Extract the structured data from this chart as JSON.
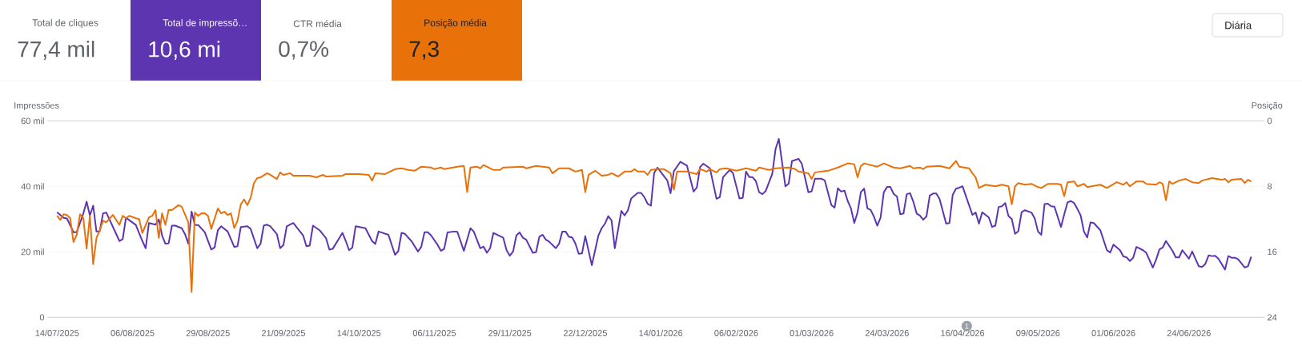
{
  "chart_data": [
    {
      "type": "other",
      "categories": [
        "Total de cliques",
        "Total de impressõ…",
        "CTR média",
        "Posição média"
      ],
      "value_labels": [
        "77,4 mil",
        "10,6 mi",
        "0,7%",
        "7,3"
      ],
      "colors": [
        null,
        "#5e35b1",
        null,
        "#e8710a"
      ],
      "annotations": [
        "Diária"
      ]
    },
    {
      "type": "line",
      "ylabel": "Impressões",
      "y2label": "Posição",
      "grid": "y",
      "xlim": [
        "2025-07-11",
        "2026-07-17"
      ],
      "xticks": [
        {
          "value": "2025-07-14",
          "label": "14/07/2025"
        },
        {
          "value": "2025-08-06",
          "label": "06/08/2025"
        },
        {
          "value": "2025-08-29",
          "label": "29/08/2025"
        },
        {
          "value": "2025-09-21",
          "label": "21/09/2025"
        },
        {
          "value": "2025-10-14",
          "label": "14/10/2025"
        },
        {
          "value": "2025-11-06",
          "label": "06/11/2025"
        },
        {
          "value": "2025-11-29",
          "label": "29/11/2025"
        },
        {
          "value": "2025-12-22",
          "label": "22/12/2025"
        },
        {
          "value": "2026-01-14",
          "label": "14/01/2026"
        },
        {
          "value": "2026-02-06",
          "label": "06/02/2026"
        },
        {
          "value": "2026-03-01",
          "label": "01/03/2026"
        },
        {
          "value": "2026-03-24",
          "label": "24/03/2026"
        },
        {
          "value": "2026-04-16",
          "label": "16/04/2026"
        },
        {
          "value": "2026-05-09",
          "label": "09/05/2026"
        },
        {
          "value": "2026-06-01",
          "label": "01/06/2026"
        },
        {
          "value": "2026-06-24",
          "label": "24/06/2026"
        }
      ],
      "ylim": [
        0,
        60
      ],
      "yticks": [
        0,
        {
          "value": 20,
          "label": "20 mil"
        },
        {
          "value": 40,
          "label": "40 mil"
        },
        {
          "value": 60,
          "label": "60 mil"
        }
      ],
      "y2lim": [
        24,
        0
      ],
      "y2ticks": [
        0,
        8,
        16,
        24
      ],
      "annotations": [
        "1"
      ],
      "series": [
        {
          "color": "#5e35b1",
          "x": [
            "2025-07-14",
            "2025-07-16",
            "2025-07-17",
            "2025-07-19",
            "2025-07-20",
            "2025-07-22",
            "2025-07-23",
            "2025-07-24",
            "2025-07-25",
            "2025-07-26",
            "2025-07-27",
            "2025-07-28",
            "2025-07-29",
            "2025-08-02",
            "2025-08-03",
            "2025-08-04",
            "2025-08-07",
            "2025-08-09",
            "2025-08-10",
            "2025-08-11",
            "2025-08-13",
            "2025-08-14",
            "2025-08-15",
            "2025-08-16",
            "2025-08-17",
            "2025-08-18",
            "2025-08-19",
            "2025-08-21",
            "2025-08-22",
            "2025-08-23",
            "2025-08-24",
            "2025-08-25",
            "2025-08-26",
            "2025-08-28",
            "2025-08-30",
            "2025-08-31",
            "2025-09-01",
            "2025-09-02",
            "2025-09-04",
            "2025-09-06",
            "2025-09-07",
            "2025-09-08",
            "2025-09-10",
            "2025-09-11",
            "2025-09-13",
            "2025-09-14",
            "2025-09-15",
            "2025-09-16",
            "2025-09-17",
            "2025-09-19",
            "2025-09-20",
            "2025-09-21",
            "2025-09-22",
            "2025-09-24",
            "2025-09-27",
            "2025-09-28",
            "2025-09-29",
            "2025-09-30",
            "2025-10-02",
            "2025-10-04",
            "2025-10-05",
            "2025-10-06",
            "2025-10-09",
            "2025-10-10",
            "2025-10-11",
            "2025-10-12",
            "2025-10-13",
            "2025-10-15",
            "2025-10-16",
            "2025-10-18",
            "2025-10-19",
            "2025-10-20",
            "2025-10-23",
            "2025-10-25",
            "2025-10-26",
            "2025-10-27",
            "2025-10-28",
            "2025-10-30",
            "2025-11-01",
            "2025-11-02",
            "2025-11-03",
            "2025-11-04",
            "2025-11-05",
            "2025-11-07",
            "2025-11-08",
            "2025-11-09",
            "2025-11-10",
            "2025-11-12",
            "2025-11-13",
            "2025-11-15",
            "2025-11-17",
            "2025-11-18",
            "2025-11-20",
            "2025-11-21",
            "2025-11-22",
            "2025-11-23",
            "2025-11-24",
            "2025-11-27",
            "2025-11-28",
            "2025-11-29",
            "2025-11-30",
            "2025-12-01",
            "2025-12-02",
            "2025-12-03",
            "2025-12-04",
            "2025-12-06",
            "2025-12-07",
            "2025-12-08",
            "2025-12-09",
            "2025-12-10",
            "2025-12-11",
            "2025-12-13",
            "2025-12-14",
            "2025-12-15",
            "2025-12-16",
            "2025-12-17",
            "2025-12-18",
            "2025-12-19",
            "2025-12-20",
            "2025-12-21",
            "2025-12-22",
            "2025-12-24",
            "2025-12-26",
            "2025-12-27",
            "2025-12-28",
            "2025-12-29",
            "2025-12-30",
            "2025-12-31",
            "2026-01-02",
            "2026-01-03",
            "2026-01-04",
            "2026-01-05",
            "2026-01-07",
            "2026-01-08",
            "2026-01-09",
            "2026-01-10",
            "2026-01-11",
            "2026-01-12",
            "2026-01-13",
            "2026-01-15",
            "2026-01-16",
            "2026-01-17",
            "2026-01-18",
            "2026-01-20",
            "2026-01-22",
            "2026-01-24",
            "2026-01-25",
            "2026-01-26",
            "2026-01-27",
            "2026-01-29",
            "2026-01-31",
            "2026-02-01",
            "2026-02-02",
            "2026-02-04",
            "2026-02-05",
            "2026-02-07",
            "2026-02-08",
            "2026-02-09",
            "2026-02-10",
            "2026-02-11",
            "2026-02-12",
            "2026-02-13",
            "2026-02-14",
            "2026-02-15",
            "2026-02-17",
            "2026-02-18",
            "2026-02-19",
            "2026-02-21",
            "2026-02-22",
            "2026-02-23",
            "2026-02-25",
            "2026-02-26",
            "2026-02-28",
            "2026-03-01",
            "2026-03-02",
            "2026-03-04",
            "2026-03-05",
            "2026-03-07",
            "2026-03-08",
            "2026-03-09",
            "2026-03-10",
            "2026-03-11",
            "2026-03-12",
            "2026-03-13",
            "2026-03-14",
            "2026-03-15",
            "2026-03-16",
            "2026-03-17",
            "2026-03-18",
            "2026-03-19",
            "2026-03-20",
            "2026-03-21",
            "2026-03-22",
            "2026-03-23",
            "2026-03-24",
            "2026-03-25",
            "2026-03-26",
            "2026-03-27",
            "2026-03-28",
            "2026-03-29",
            "2026-03-30",
            "2026-03-31",
            "2026-04-01",
            "2026-04-02",
            "2026-04-03",
            "2026-04-04",
            "2026-04-05",
            "2026-04-06",
            "2026-04-07",
            "2026-04-08",
            "2026-04-09",
            "2026-04-11",
            "2026-04-12",
            "2026-04-13",
            "2026-04-14",
            "2026-04-15",
            "2026-04-16",
            "2026-04-19",
            "2026-04-20",
            "2026-04-21",
            "2026-04-22",
            "2026-04-24",
            "2026-04-25",
            "2026-04-26",
            "2026-04-27",
            "2026-04-28",
            "2026-04-29",
            "2026-04-30",
            "2026-05-01",
            "2026-05-02",
            "2026-05-03",
            "2026-05-04",
            "2026-05-05",
            "2026-05-07",
            "2026-05-08",
            "2026-05-09",
            "2026-05-10",
            "2026-05-11",
            "2026-05-12",
            "2026-05-13",
            "2026-05-14",
            "2026-05-16",
            "2026-05-17",
            "2026-05-18",
            "2026-05-19",
            "2026-05-20",
            "2026-05-21",
            "2026-05-22",
            "2026-05-23",
            "2026-05-24",
            "2026-05-25",
            "2026-05-26",
            "2026-05-28",
            "2026-05-30",
            "2026-05-31",
            "2026-06-01",
            "2026-06-03",
            "2026-06-04",
            "2026-06-05",
            "2026-06-06",
            "2026-06-07",
            "2026-06-08",
            "2026-06-10",
            "2026-06-11",
            "2026-06-13",
            "2026-06-14",
            "2026-06-15",
            "2026-06-16",
            "2026-06-17",
            "2026-06-19",
            "2026-06-20",
            "2026-06-21",
            "2026-06-22",
            "2026-06-24",
            "2026-06-25",
            "2026-06-27",
            "2026-06-28",
            "2026-06-29",
            "2026-06-30",
            "2026-07-01",
            "2026-07-02",
            "2026-07-03",
            "2026-07-05",
            "2026-07-06",
            "2026-07-07",
            "2026-07-08",
            "2026-07-09",
            "2026-07-11",
            "2026-07-12",
            "2026-07-13"
          ],
          "values": [
            32.1,
            30.4,
            30.2,
            26.0,
            26.0,
            31.7,
            35.3,
            31.1,
            34.1,
            26.2,
            26.3,
            31.7,
            32.0,
            23.3,
            23.9,
            30.4,
            28.2,
            23.3,
            21.1,
            28.8,
            28.3,
            29.9,
            25.0,
            22.5,
            22.6,
            28.0,
            28.0,
            27.2,
            25.4,
            22.5,
            32.3,
            28.2,
            28.2,
            26.0,
            20.7,
            21.3,
            26.6,
            27.8,
            26.2,
            21.5,
            21.7,
            27.6,
            27.8,
            27.0,
            21.1,
            22.4,
            28.0,
            28.3,
            27.8,
            25.4,
            21.1,
            22.1,
            27.8,
            28.8,
            25.0,
            21.7,
            21.9,
            28.0,
            26.6,
            24.1,
            20.7,
            20.9,
            25.8,
            23.3,
            20.5,
            21.3,
            27.8,
            27.4,
            27.2,
            23.3,
            22.4,
            26.2,
            25.2,
            19.1,
            20.2,
            25.8,
            25.5,
            23.3,
            20.1,
            21.5,
            26.0,
            26.0,
            25.0,
            22.1,
            20.3,
            20.9,
            25.9,
            26.2,
            26.1,
            20.3,
            27.2,
            26.2,
            21.1,
            21.6,
            19.7,
            21.1,
            25.8,
            24.3,
            20.5,
            18.8,
            20.1,
            25.0,
            25.9,
            24.3,
            23.7,
            19.7,
            19.9,
            24.6,
            25.2,
            23.7,
            23.1,
            21.1,
            22.4,
            26.2,
            26.2,
            24.6,
            24.4,
            22.5,
            19.4,
            19.5,
            24.8,
            15.9,
            25.0,
            27.2,
            28.6,
            30.9,
            29.6,
            21.1,
            32.5,
            31.1,
            32.7,
            36.3,
            38.0,
            38.0,
            36.7,
            34.7,
            34.1,
            44.1,
            45.7,
            43.1,
            41.8,
            37.9,
            44.6,
            47.5,
            46.3,
            38.4,
            39.6,
            45.9,
            46.9,
            45.5,
            36.2,
            36.7,
            42.8,
            45.0,
            44.1,
            36.3,
            36.5,
            44.5,
            42.8,
            42.8,
            41.6,
            38.2,
            37.6,
            38.6,
            43.8,
            51.4,
            54.5,
            40.0,
            40.8,
            47.7,
            48.4,
            46.9,
            38.2,
            38.5,
            42.3,
            42.3,
            41.8,
            34.3,
            33.5,
            39.4,
            38.4,
            38.7,
            35.5,
            33.2,
            28.8,
            32.1,
            38.2,
            39.3,
            33.3,
            32.8,
            30.7,
            28.0,
            30.4,
            38.2,
            39.8,
            39.8,
            37.7,
            36.9,
            31.5,
            31.7,
            37.6,
            37.9,
            35.3,
            31.7,
            31.1,
            29.8,
            30.8,
            37.2,
            37.8,
            37.8,
            36.1,
            28.6,
            28.8,
            37.4,
            39.3,
            39.6,
            40.0,
            31.3,
            32.0,
            28.6,
            32.1,
            30.5,
            27.6,
            28.0,
            33.7,
            33.9,
            34.9,
            30.9,
            30.0,
            25.5,
            26.3,
            32.1,
            32.7,
            32.0,
            30.2,
            26.2,
            25.2,
            34.6,
            34.7,
            33.9,
            33.8,
            27.6,
            31.5,
            35.1,
            35.5,
            34.9,
            33.1,
            31.1,
            26.2,
            24.4,
            29.0,
            28.8,
            26.6,
            20.5,
            19.8,
            22.2,
            20.5,
            18.6,
            18.3,
            17.2,
            18.2,
            21.5,
            20.5,
            19.7,
            15.2,
            17.6,
            20.7,
            21.3,
            23.3,
            20.3,
            18.3,
            18.3,
            20.5,
            17.9,
            20.1,
            15.6,
            15.4,
            16.3,
            18.9,
            18.7,
            18.8,
            17.9,
            14.6,
            18.7,
            18.2,
            18.2,
            17.7,
            15.2,
            15.6,
            18.5
          ]
        },
        {
          "color": "#e8710a",
          "axis": "y2",
          "x": [
            "2025-07-14",
            "2025-07-15",
            "2025-07-16",
            "2025-07-17",
            "2025-07-18",
            "2025-07-19",
            "2025-07-20",
            "2025-07-21",
            "2025-07-22",
            "2025-07-23",
            "2025-07-24",
            "2025-07-25",
            "2025-07-26",
            "2025-07-27",
            "2025-07-28",
            "2025-07-29",
            "2025-07-31",
            "2025-08-02",
            "2025-08-03",
            "2025-08-04",
            "2025-08-05",
            "2025-08-07",
            "2025-08-08",
            "2025-08-09",
            "2025-08-11",
            "2025-08-12",
            "2025-08-13",
            "2025-08-14",
            "2025-08-15",
            "2025-08-16",
            "2025-08-17",
            "2025-08-18",
            "2025-08-20",
            "2025-08-21",
            "2025-08-23",
            "2025-08-24",
            "2025-08-25",
            "2025-08-26",
            "2025-08-27",
            "2025-08-28",
            "2025-08-29",
            "2025-08-30",
            "2025-09-01",
            "2025-09-02",
            "2025-09-03",
            "2025-09-04",
            "2025-09-05",
            "2025-09-06",
            "2025-09-07",
            "2025-09-08",
            "2025-09-09",
            "2025-09-10",
            "2025-09-11",
            "2025-09-12",
            "2025-09-13",
            "2025-09-14",
            "2025-09-16",
            "2025-09-17",
            "2025-09-19",
            "2025-09-20",
            "2025-09-21",
            "2025-09-23",
            "2025-09-24",
            "2025-09-29",
            "2025-10-01",
            "2025-10-03",
            "2025-10-04",
            "2025-10-09",
            "2025-10-10",
            "2025-10-14",
            "2025-10-17",
            "2025-10-18",
            "2025-10-19",
            "2025-10-22",
            "2025-10-25",
            "2025-10-27",
            "2025-10-29",
            "2025-10-31",
            "2025-11-02",
            "2025-11-05",
            "2025-11-06",
            "2025-11-08",
            "2025-11-09",
            "2025-11-13",
            "2025-11-15",
            "2025-11-16",
            "2025-11-17",
            "2025-11-19",
            "2025-11-20",
            "2025-11-21",
            "2025-11-24",
            "2025-11-26",
            "2025-11-27",
            "2025-12-03",
            "2025-12-04",
            "2025-12-07",
            "2025-12-11",
            "2025-12-12",
            "2025-12-14",
            "2025-12-17",
            "2025-12-19",
            "2025-12-21",
            "2025-12-22",
            "2025-12-23",
            "2025-12-25",
            "2025-12-27",
            "2025-12-29",
            "2025-12-30",
            "2026-01-01",
            "2026-01-03",
            "2026-01-05",
            "2026-01-06",
            "2026-01-07",
            "2026-01-09",
            "2026-01-10",
            "2026-01-11",
            "2026-01-13",
            "2026-01-15",
            "2026-01-17",
            "2026-01-18",
            "2026-01-19",
            "2026-01-22",
            "2026-01-25",
            "2026-01-26",
            "2026-01-28",
            "2026-01-29",
            "2026-01-31",
            "2026-02-01",
            "2026-02-03",
            "2026-02-06",
            "2026-02-09",
            "2026-02-12",
            "2026-02-13",
            "2026-02-16",
            "2026-02-18",
            "2026-02-22",
            "2026-02-24",
            "2026-02-25",
            "2026-02-28",
            "2026-03-01",
            "2026-03-02",
            "2026-03-06",
            "2026-03-09",
            "2026-03-12",
            "2026-03-14",
            "2026-03-15",
            "2026-03-16",
            "2026-03-17",
            "2026-03-21",
            "2026-03-23",
            "2026-03-26",
            "2026-03-28",
            "2026-03-31",
            "2026-04-01",
            "2026-04-03",
            "2026-04-04",
            "2026-04-05",
            "2026-04-09",
            "2026-04-12",
            "2026-04-14",
            "2026-04-15",
            "2026-04-18",
            "2026-04-19",
            "2026-04-20",
            "2026-04-21",
            "2026-04-23",
            "2026-04-26",
            "2026-04-28",
            "2026-04-30",
            "2026-05-01",
            "2026-05-02",
            "2026-05-03",
            "2026-05-05",
            "2026-05-07",
            "2026-05-09",
            "2026-05-10",
            "2026-05-12",
            "2026-05-15",
            "2026-05-16",
            "2026-05-17",
            "2026-05-18",
            "2026-05-20",
            "2026-05-21",
            "2026-05-23",
            "2026-05-24",
            "2026-05-28",
            "2026-05-30",
            "2026-06-02",
            "2026-06-04",
            "2026-06-05",
            "2026-06-06",
            "2026-06-08",
            "2026-06-10",
            "2026-06-11",
            "2026-06-14",
            "2026-06-15",
            "2026-06-16",
            "2026-06-17",
            "2026-06-18",
            "2026-06-19",
            "2026-06-21",
            "2026-06-23",
            "2026-06-25",
            "2026-06-27",
            "2026-06-28",
            "2026-07-01",
            "2026-07-04",
            "2026-07-05",
            "2026-07-06",
            "2026-07-07",
            "2026-07-10",
            "2026-07-11",
            "2026-07-12",
            "2026-07-13"
          ],
          "values": [
            11.6,
            12.1,
            11.4,
            11.5,
            11.9,
            14.8,
            13.9,
            11.4,
            11.9,
            15.6,
            11.6,
            17.5,
            14.3,
            13.4,
            12.2,
            12.4,
            11.5,
            12.7,
            11.6,
            11.9,
            11.6,
            11.9,
            12.0,
            13.7,
            11.8,
            11.6,
            10.9,
            14.3,
            11.3,
            12.7,
            10.9,
            10.9,
            10.3,
            10.5,
            12.4,
            20.9,
            11.2,
            11.6,
            11.3,
            11.3,
            11.6,
            13.2,
            10.7,
            11.3,
            11.1,
            11.5,
            11.3,
            13.1,
            12.2,
            10.2,
            9.6,
            10.3,
            9.4,
            7.6,
            7.0,
            6.9,
            6.4,
            6.6,
            7.1,
            6.3,
            6.6,
            6.4,
            6.7,
            6.7,
            6.9,
            6.6,
            6.8,
            6.7,
            6.5,
            6.5,
            6.6,
            7.3,
            6.4,
            6.5,
            5.9,
            5.8,
            6.0,
            6.1,
            5.6,
            5.7,
            5.9,
            5.7,
            5.9,
            5.6,
            5.5,
            8.7,
            5.7,
            5.6,
            5.8,
            5.4,
            6.0,
            6.0,
            5.7,
            5.6,
            5.8,
            5.5,
            5.7,
            6.4,
            5.8,
            5.8,
            6.2,
            6.0,
            8.7,
            6.6,
            6.1,
            6.7,
            6.6,
            6.4,
            6.8,
            6.2,
            6.2,
            5.9,
            6.2,
            6.2,
            6.6,
            6.0,
            5.9,
            5.9,
            6.4,
            8.4,
            6.2,
            6.2,
            6.5,
            5.9,
            6.2,
            5.9,
            6.3,
            5.9,
            5.8,
            6.1,
            5.8,
            6.1,
            5.7,
            6.0,
            5.8,
            5.7,
            5.9,
            6.2,
            6.4,
            7.1,
            6.3,
            6.1,
            5.7,
            5.2,
            5.3,
            6.9,
            5.5,
            5.2,
            5.6,
            5.2,
            5.7,
            5.8,
            5.5,
            5.8,
            5.7,
            5.9,
            5.6,
            5.5,
            5.8,
            4.9,
            5.6,
            5.8,
            6.4,
            6.9,
            8.2,
            7.8,
            8.0,
            7.8,
            8.0,
            10.2,
            8.0,
            7.6,
            7.8,
            7.7,
            8.1,
            8.2,
            7.7,
            7.7,
            7.8,
            9.2,
            7.5,
            7.4,
            8.0,
            7.7,
            8.1,
            7.8,
            8.2,
            7.5,
            7.8,
            7.5,
            8.0,
            7.4,
            7.4,
            7.7,
            7.8,
            7.5,
            7.7,
            9.7,
            7.4,
            7.7,
            7.3,
            7.1,
            7.5,
            7.6,
            7.3,
            7.0,
            7.2,
            7.1,
            7.5,
            7.2,
            7.1,
            7.6,
            7.2,
            7.4
          ]
        }
      ]
    }
  ]
}
